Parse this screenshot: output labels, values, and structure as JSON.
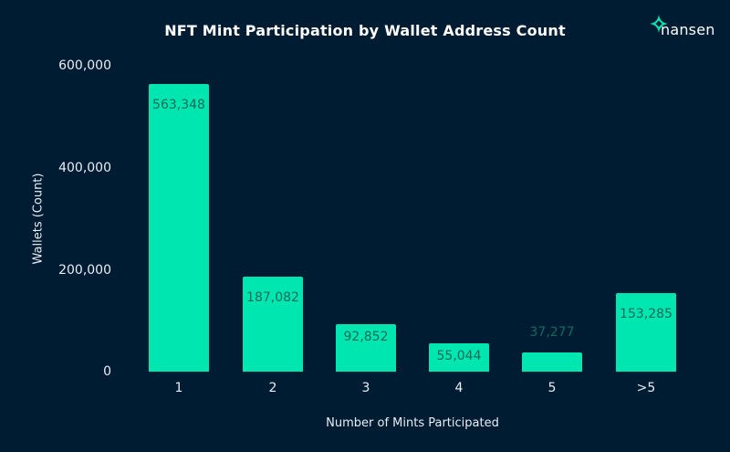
{
  "chart_data": {
    "type": "bar",
    "title": "NFT Mint Participation by Wallet Address Count",
    "xlabel": "Number of Mints Participated",
    "ylabel": "Wallets (Count)",
    "categories": [
      "1",
      "2",
      "3",
      "4",
      "5",
      ">5"
    ],
    "values": [
      563348,
      187082,
      92852,
      55044,
      37277,
      153285
    ],
    "data_labels": [
      "563,348",
      "187,082",
      "92,852",
      "55,044",
      "37,277",
      "153,285"
    ],
    "ylim": [
      0,
      600000
    ],
    "yticks": [
      "0",
      "200,000",
      "400,000",
      "600,000"
    ],
    "grid": false,
    "legend": "none",
    "bar_color": "#00e6b0",
    "background_color": "#001c33"
  },
  "branding": {
    "logo_text": "nansen",
    "logo_color": "#00e6b0"
  }
}
